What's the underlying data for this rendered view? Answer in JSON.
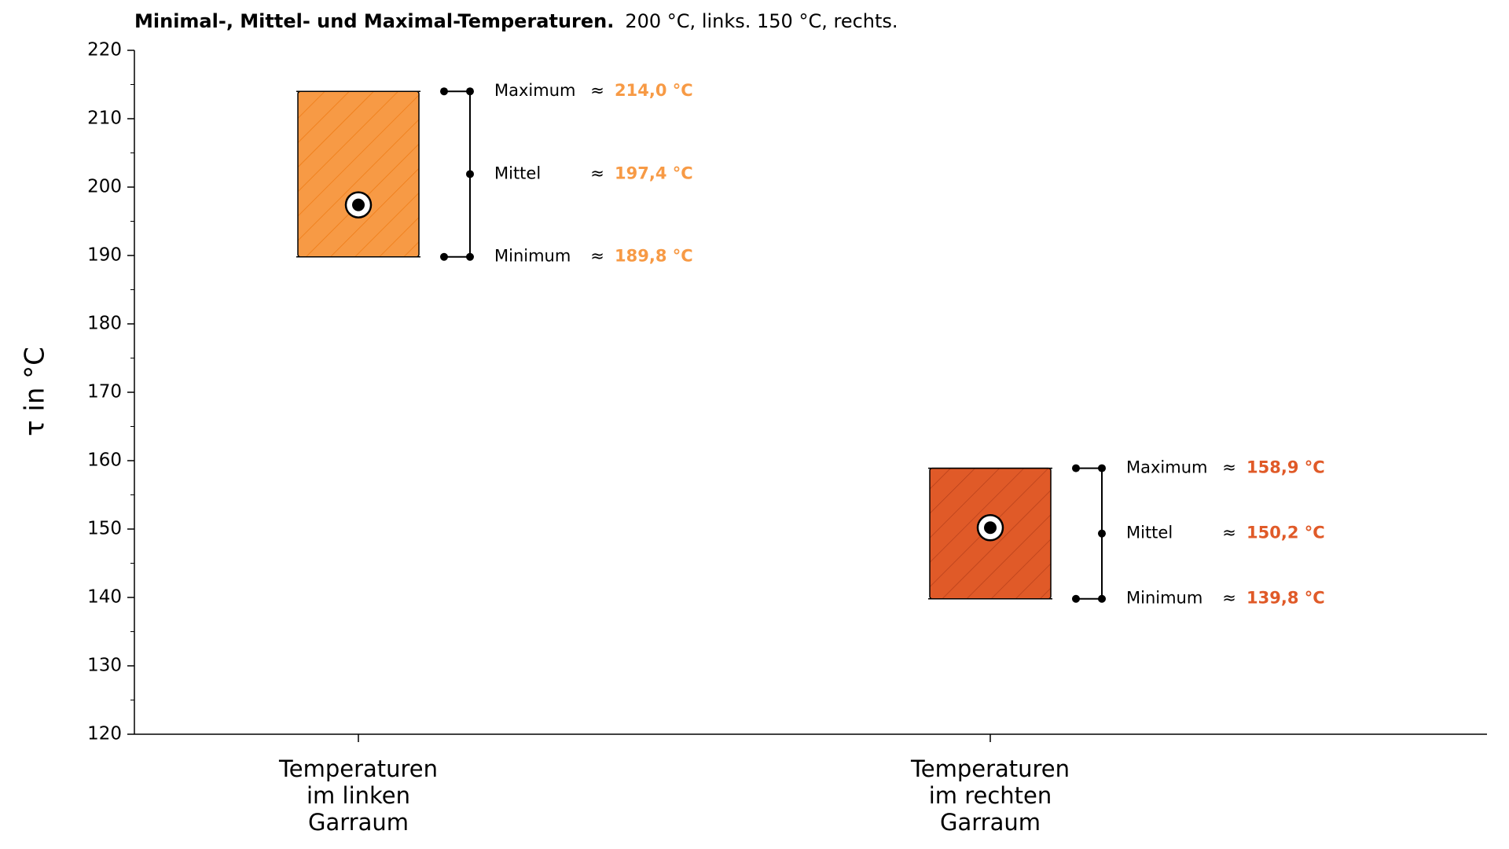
{
  "chart_data": {
    "type": "range",
    "title": "Minimal-, Mittel- und Maximal-Temperaturen.",
    "subtitle": "200 °C, links. 150 °C, rechts.",
    "y_label": "τ in °C",
    "categories": [
      "Temperaturen\nim linken\nGarraum",
      "Temperaturen\nim rechten\nGarraum"
    ],
    "colors": [
      "#f79a45",
      "#e05a28"
    ],
    "hatch_colors": [
      "#ee7a14",
      "#b8401a"
    ],
    "approx_symbol": "≈",
    "series": [
      {
        "name": "Minimum",
        "values": [
          189.8,
          139.8
        ],
        "value_labels": [
          "189,8 °C",
          "139,8 °C"
        ]
      },
      {
        "name": "Mittel",
        "values": [
          197.4,
          150.2
        ],
        "value_labels": [
          "197,4 °C",
          "150,2 °C"
        ]
      },
      {
        "name": "Maximum",
        "values": [
          214.0,
          158.9
        ],
        "value_labels": [
          "214,0 °C",
          "158,9 °C"
        ]
      }
    ],
    "ylim": [
      120,
      220
    ],
    "yticks": [
      120,
      130,
      140,
      150,
      160,
      170,
      180,
      190,
      200,
      210,
      220
    ],
    "yminor_ticks": [
      125,
      135,
      145,
      155,
      165,
      175,
      185,
      195,
      205,
      215
    ]
  }
}
